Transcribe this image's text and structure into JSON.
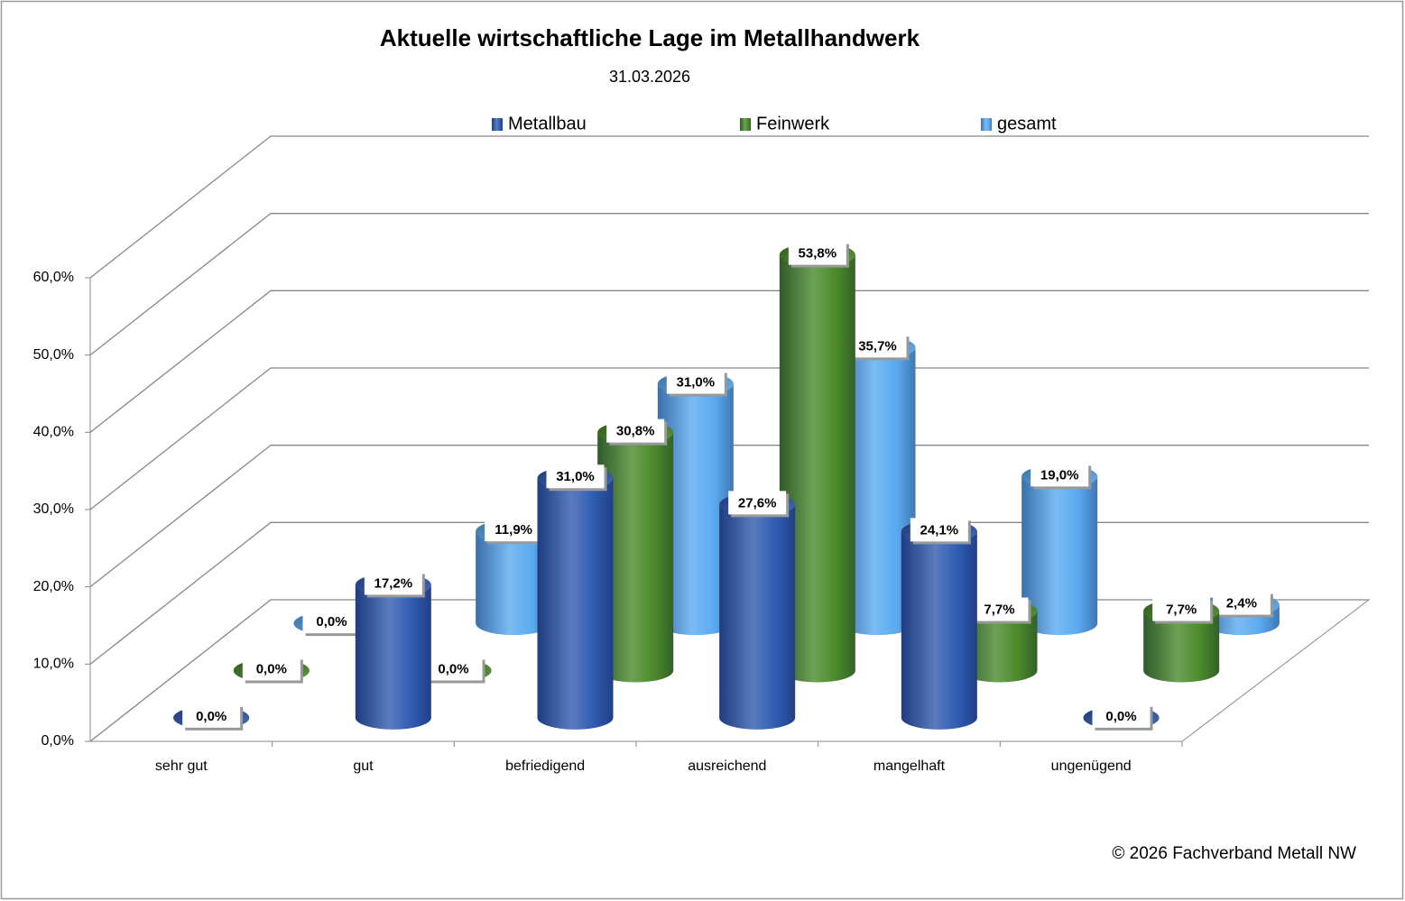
{
  "chart_data": {
    "type": "bar3d",
    "title": "Aktuelle wirtschaftliche Lage im Metallhandwerk",
    "subtitle": "31.03.2026",
    "footer": "© 2026 Fachverband Metall NW",
    "categories": [
      "sehr gut",
      "gut",
      "befriedigend",
      "ausreichend",
      "mangelhaft",
      "ungenügend"
    ],
    "series": [
      {
        "name": "Metallbau",
        "color": "#2f5bb0",
        "values": [
          0,
          17.2,
          31.0,
          27.6,
          24.1,
          0
        ],
        "value_labels": [
          "0,0%",
          "17,2%",
          "31,0%",
          "27,6%",
          "24,1%",
          "0,0%"
        ]
      },
      {
        "name": "Feinwerk",
        "color": "#4a8a2a",
        "values": [
          0,
          0,
          30.8,
          53.8,
          7.7,
          7.7
        ],
        "value_labels": [
          "0,0%",
          "0,0%",
          "30,8%",
          "53,8%",
          "7,7%",
          "7,7%"
        ]
      },
      {
        "name": "gesamt",
        "color": "#5aaaf0",
        "values": [
          0,
          11.9,
          31.0,
          35.7,
          19.0,
          2.4
        ],
        "value_labels": [
          "0,0%",
          "11,9%",
          "31,0%",
          "35,7%",
          "19,0%",
          "2,4%"
        ]
      }
    ],
    "ylim": [
      0,
      60
    ],
    "yticks": [
      {
        "value": 0,
        "label": "0,0%"
      },
      {
        "value": 10,
        "label": "10,0%"
      },
      {
        "value": 20,
        "label": "20,0%"
      },
      {
        "value": 30,
        "label": "30,0%"
      },
      {
        "value": 40,
        "label": "40,0%"
      },
      {
        "value": 50,
        "label": "50,0%"
      },
      {
        "value": 60,
        "label": "60,0%"
      }
    ],
    "grid": true,
    "legend": "top"
  }
}
